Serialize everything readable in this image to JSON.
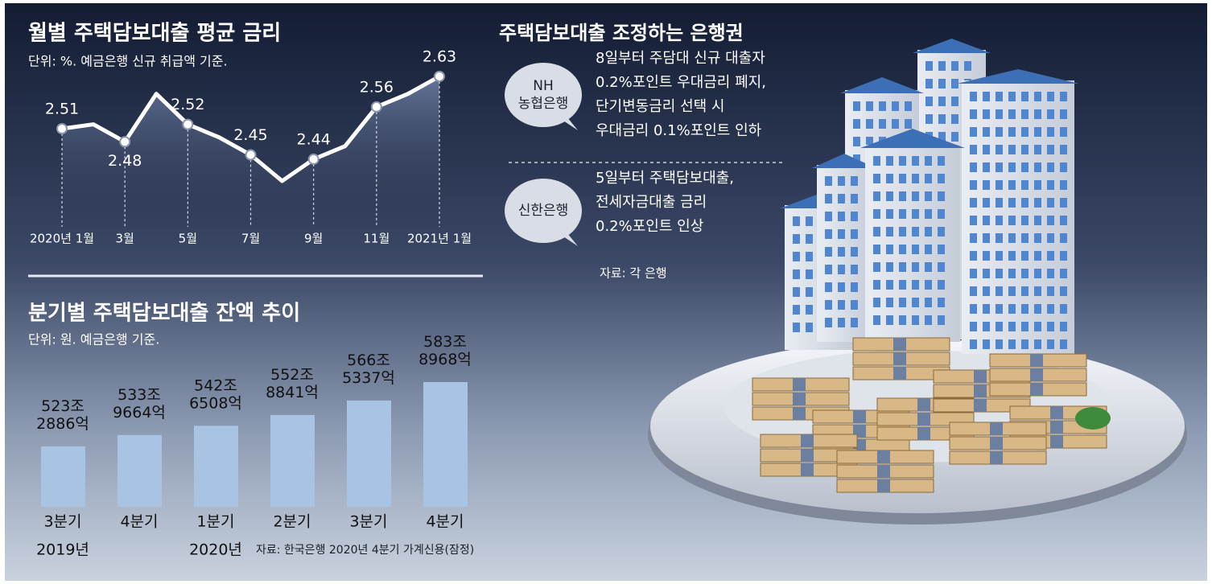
{
  "chart_data": [
    {
      "type": "line",
      "title": "월별 주택담보대출 평균 금리",
      "subtitle": "단위: %. 예금은행 신규 취급액 기준.",
      "categories": [
        "2020년 1월",
        null,
        "3월",
        null,
        "5월",
        null,
        "7월",
        null,
        "9월",
        null,
        "11월",
        null,
        "2021년 1월"
      ],
      "values": [
        2.51,
        2.52,
        2.48,
        2.59,
        2.52,
        2.49,
        2.45,
        2.39,
        2.44,
        2.47,
        2.56,
        2.59,
        2.63
      ],
      "color": "#ffffff"
    },
    {
      "type": "bar",
      "title": "분기별 주택담보대출 잔액 추이",
      "subtitle": "단위: 원. 예금은행 기준.",
      "categories": [
        "3분기",
        "4분기",
        "1분기",
        "2분기",
        "3분기",
        "4분기"
      ],
      "years": [
        "2019년",
        null,
        "2020년",
        null,
        null,
        null
      ],
      "values": [
        5232886,
        5339664,
        5426508,
        5528841,
        5665337,
        5838968
      ],
      "value_labels": [
        "523조\n2886억",
        "533조\n9664억",
        "542조\n6508억",
        "552조\n8841억",
        "566조\n5337억",
        "583조\n8968억"
      ],
      "color": "#a9c4e2",
      "source": "자료: 한국은행 2020년 4분기 가계신용(잠정)"
    }
  ],
  "panel": {
    "title": "주택담보대출 조정하는 은행권",
    "items": [
      {
        "bank": [
          "NH",
          "농협은행"
        ],
        "lines": [
          "8일부터 주담대 신규 대출자",
          "0.2%포인트 우대금리 폐지,",
          "단기변동금리 선택 시",
          "우대금리 0.1%포인트 인하"
        ]
      },
      {
        "bank": [
          "신한은행"
        ],
        "lines": [
          "5일부터 주택담보대출,",
          "전세자금대출 금리",
          "0.2%포인트 인상"
        ]
      }
    ],
    "source": "자료: 각 은행"
  }
}
